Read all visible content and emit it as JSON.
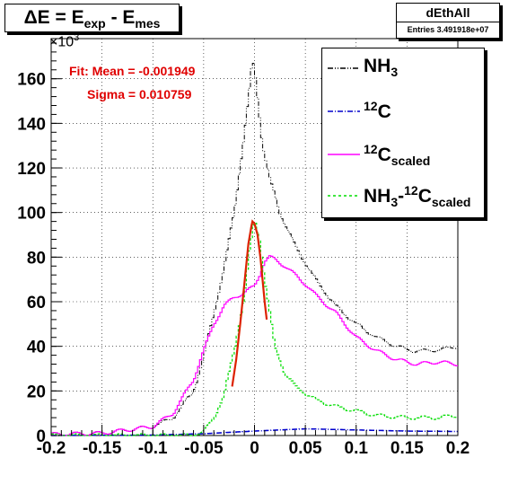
{
  "title": {
    "main": "ΔE = E",
    "sub1": "exp",
    "mid": " - E",
    "sub2": "mes"
  },
  "stats": {
    "name": "dEthAll",
    "entries": "Entries 3.491918e+07"
  },
  "multiplier": {
    "base": "×10",
    "exp": "3"
  },
  "fit": {
    "mean": "Fit: Mean = -0.001949",
    "sigma": "Sigma = 0.010759"
  },
  "legend": [
    {
      "id": "nh3",
      "text": "NH",
      "sub": "3",
      "color": "#000000",
      "style": "dash-dot"
    },
    {
      "id": "c12",
      "sup": "12",
      "text": "C",
      "color": "#0000cc",
      "style": "dash-dot"
    },
    {
      "id": "c12s",
      "sup": "12",
      "text": "C",
      "sub": "scaled",
      "color": "#ff00ff",
      "style": "solid"
    },
    {
      "id": "diff",
      "text": "NH",
      "sub": "3",
      "text2": "-",
      "sup2": "12",
      "text3": "C",
      "sub2": "scaled",
      "color": "#00dd00",
      "style": "dotted"
    }
  ],
  "chart_data": {
    "type": "line",
    "xlim": [
      -0.2,
      0.2
    ],
    "ylim": [
      0,
      178
    ],
    "y_unit_multiplier": "×10^3",
    "x_ticks": [
      "-0.2",
      "-0.15",
      "-0.1",
      "-0.05",
      "0",
      "0.05",
      "0.1",
      "0.15",
      "0.2"
    ],
    "y_ticks": [
      "0",
      "20",
      "40",
      "60",
      "80",
      "100",
      "120",
      "140",
      "160"
    ],
    "grid": true,
    "legend_position": "top-right",
    "series": [
      {
        "name": "NH3",
        "color": "#000000",
        "x": [
          -0.2,
          -0.15,
          -0.1,
          -0.08,
          -0.06,
          -0.05,
          -0.04,
          -0.03,
          -0.02,
          -0.015,
          -0.01,
          -0.005,
          -0.002,
          0,
          0.003,
          0.008,
          0.015,
          0.025,
          0.04,
          0.06,
          0.08,
          0.1,
          0.12,
          0.14,
          0.155,
          0.17,
          0.19,
          0.2
        ],
        "y": [
          0.5,
          1,
          4,
          8,
          20,
          35,
          55,
          75,
          100,
          118,
          135,
          155,
          168,
          165,
          152,
          130,
          115,
          100,
          85,
          70,
          58,
          50,
          44,
          40,
          38,
          38,
          39,
          40
        ]
      },
      {
        "name": "12C",
        "color": "#0000cc",
        "x": [
          -0.2,
          -0.1,
          -0.05,
          0,
          0.05,
          0.1,
          0.15,
          0.2
        ],
        "y": [
          0,
          0.2,
          0.8,
          2,
          3,
          2.5,
          2,
          1.8
        ]
      },
      {
        "name": "12C scaled",
        "color": "#ff00ff",
        "x": [
          -0.2,
          -0.15,
          -0.1,
          -0.08,
          -0.06,
          -0.05,
          -0.04,
          -0.03,
          -0.02,
          -0.01,
          0,
          0.005,
          0.01,
          0.015,
          0.02,
          0.03,
          0.04,
          0.05,
          0.06,
          0.08,
          0.1,
          0.12,
          0.14,
          0.16,
          0.18,
          0.2
        ],
        "y": [
          0.5,
          1,
          4,
          10,
          25,
          38,
          50,
          58,
          62,
          64,
          67,
          72,
          78,
          80,
          79,
          76,
          72,
          68,
          63,
          55,
          44,
          38,
          34,
          32,
          33,
          32
        ]
      },
      {
        "name": "NH3-12C scaled",
        "color": "#00dd00",
        "x": [
          -0.2,
          -0.06,
          -0.05,
          -0.04,
          -0.03,
          -0.02,
          -0.01,
          -0.005,
          0,
          0.005,
          0.01,
          0.015,
          0.02,
          0.03,
          0.04,
          0.06,
          0.08,
          0.1,
          0.12,
          0.15,
          0.18,
          0.2
        ],
        "y": [
          0,
          0,
          2,
          8,
          18,
          38,
          62,
          82,
          97,
          88,
          70,
          55,
          40,
          28,
          22,
          16,
          13,
          11,
          9,
          8,
          8,
          9
        ]
      },
      {
        "name": "Fit",
        "color": "#dd2200",
        "x": [
          -0.022,
          -0.018,
          -0.014,
          -0.01,
          -0.006,
          -0.003,
          -0.002,
          0,
          0.003,
          0.006,
          0.01,
          0.012
        ],
        "y": [
          22,
          34,
          50,
          68,
          86,
          94,
          96,
          95,
          90,
          79,
          60,
          52
        ]
      }
    ]
  }
}
